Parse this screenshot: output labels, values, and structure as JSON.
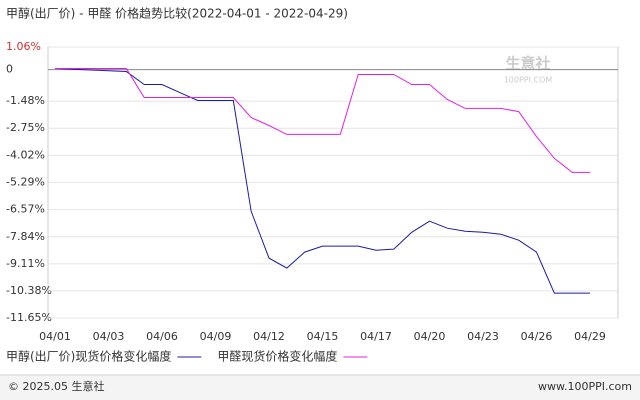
{
  "chart_data": {
    "type": "line",
    "title": "甲醇(出厂价) - 甲醛 价格趋势比较(2022-04-01 - 2022-04-29)",
    "categories": [
      "04/01",
      null,
      null,
      "04/03",
      null,
      null,
      "04/06",
      null,
      null,
      "04/09",
      null,
      null,
      "04/12",
      null,
      null,
      "04/15",
      null,
      null,
      "04/17",
      null,
      null,
      "04/20",
      null,
      null,
      "04/23",
      null,
      null,
      "04/26",
      null,
      null,
      "04/29"
    ],
    "series": [
      {
        "name": "甲醇(出厂价)现货价格变化幅度",
        "color": "#1c1ca0",
        "values": [
          0.05,
          0.02,
          -0.02,
          -0.05,
          -0.09,
          -0.7,
          -0.7,
          -1.08,
          -1.45,
          -1.45,
          -1.45,
          -6.65,
          -8.84,
          -9.31,
          -8.56,
          -8.28,
          -8.28,
          -8.28,
          -8.47,
          -8.42,
          -7.63,
          -7.11,
          -7.44,
          -7.58,
          -7.63,
          -7.72,
          -8.0,
          -8.56,
          -10.48,
          -10.48,
          -10.48
        ]
      },
      {
        "name": "甲醛现货价格变化幅度",
        "color": "#e020e0",
        "values": [
          0.05,
          0.05,
          0.05,
          0.05,
          0.05,
          -1.31,
          -1.31,
          -1.31,
          -1.31,
          -1.31,
          -1.31,
          -2.25,
          -2.62,
          -3.04,
          -3.04,
          -3.04,
          -3.04,
          -0.23,
          -0.23,
          -0.23,
          -0.7,
          -0.7,
          -1.4,
          -1.82,
          -1.82,
          -1.82,
          -1.97,
          -3.14,
          -4.16,
          -4.82,
          -4.82
        ]
      }
    ],
    "ylim": [
      -11.65,
      1.06
    ],
    "yticks": [
      {
        "value": 1.06,
        "label": "1.06%"
      },
      0,
      {
        "value": -1.48,
        "label": "-1.48%"
      },
      {
        "value": -2.75,
        "label": "-2.75%"
      },
      {
        "value": -4.02,
        "label": "-4.02%"
      },
      {
        "value": -5.29,
        "label": "-5.29%"
      },
      {
        "value": -6.57,
        "label": "-6.57%"
      },
      {
        "value": -7.84,
        "label": "-7.84%"
      },
      {
        "value": -9.11,
        "label": "-9.11%"
      },
      {
        "value": -10.38,
        "label": "-10.38%"
      },
      {
        "value": -11.65,
        "label": "-11.65%"
      }
    ],
    "grid": true,
    "watermark": {
      "name": "生意社",
      "site": "100PPI.COM"
    },
    "footer": {
      "left": "© 2025.05 生意社",
      "right": "www.100PPI.com"
    }
  }
}
